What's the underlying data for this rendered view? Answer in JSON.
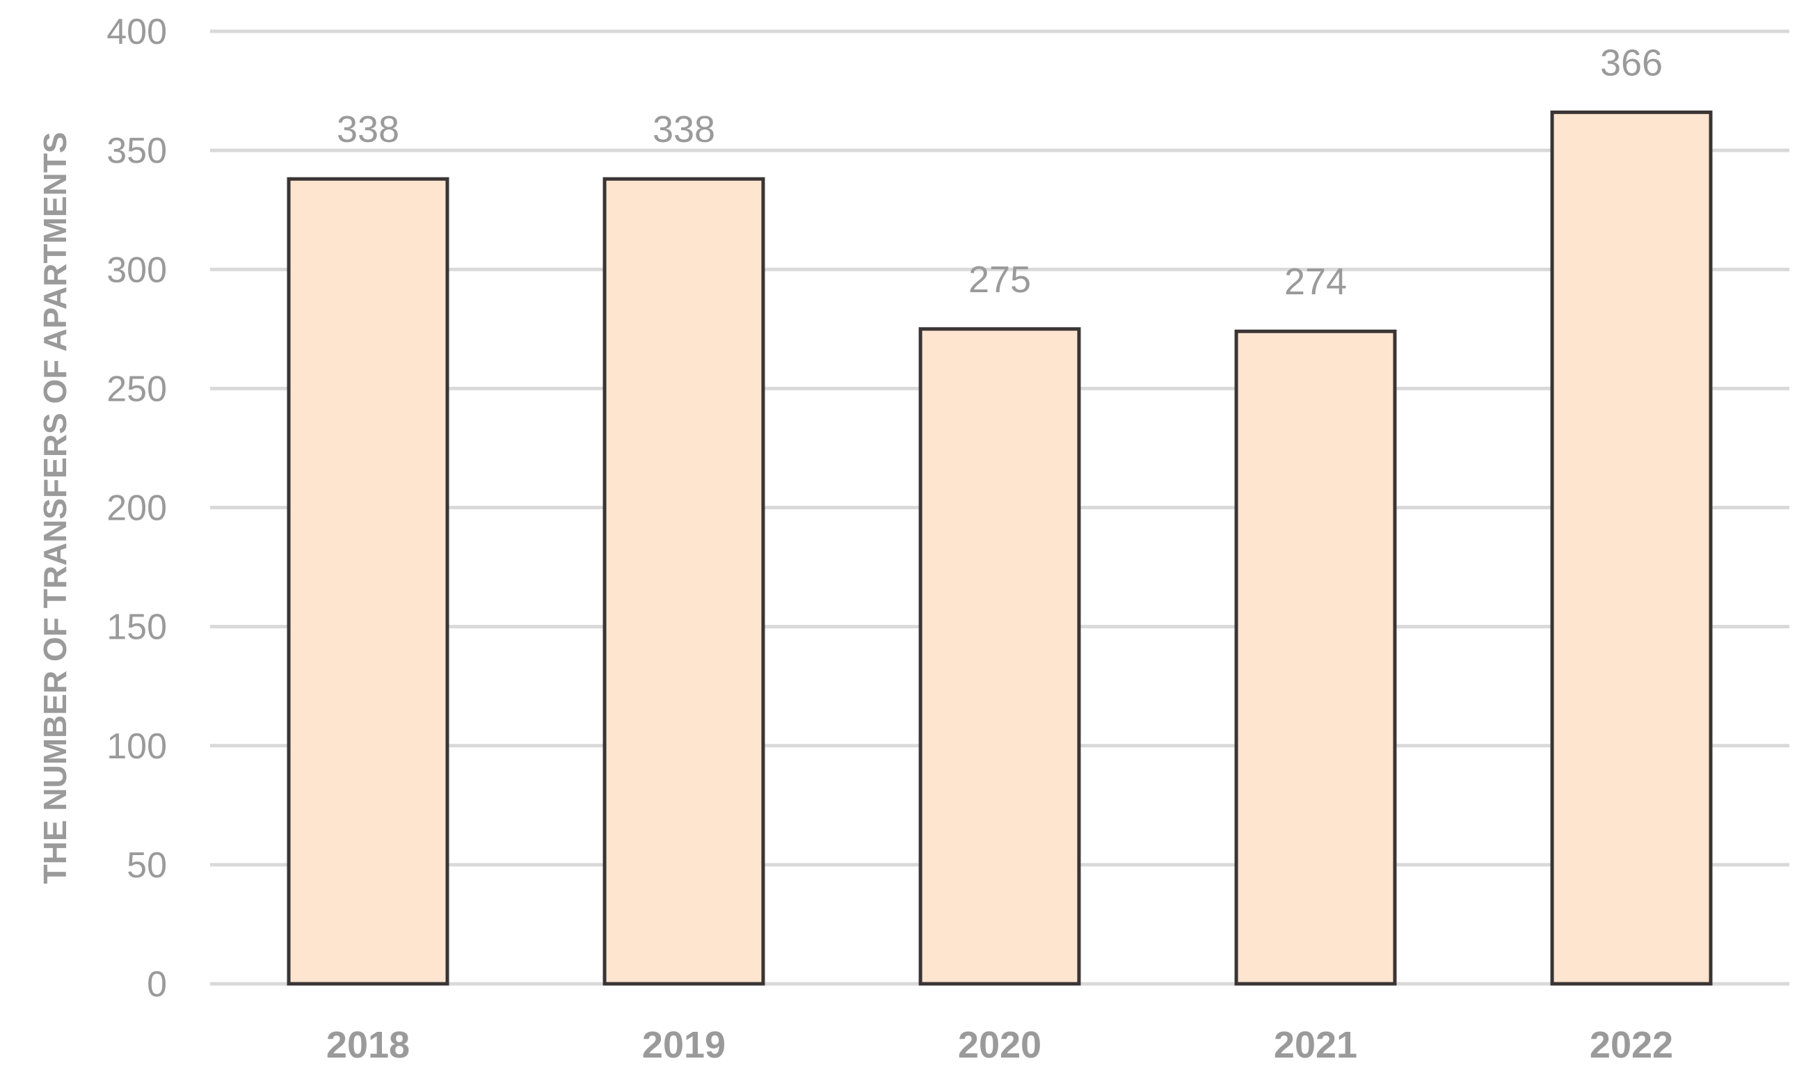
{
  "chart_data": {
    "type": "bar",
    "categories": [
      "2018",
      "2019",
      "2020",
      "2021",
      "2022"
    ],
    "values": [
      338,
      338,
      275,
      274,
      366
    ],
    "data_labels": [
      "338",
      "338",
      "275",
      "274",
      "366"
    ],
    "ylabel": "THE NUMBER OF TRANSFERS OF APARTMENTS",
    "xlabel": "",
    "ylim": [
      0,
      400
    ],
    "yticks": [
      0,
      50,
      100,
      150,
      200,
      250,
      300,
      350,
      400
    ],
    "grid": true,
    "legend": "none",
    "colors": {
      "bar_fill": "#fde5d0",
      "bar_stroke": "#3a3434",
      "grid": "#d9d9d9",
      "text": "#9a9a9a"
    }
  }
}
